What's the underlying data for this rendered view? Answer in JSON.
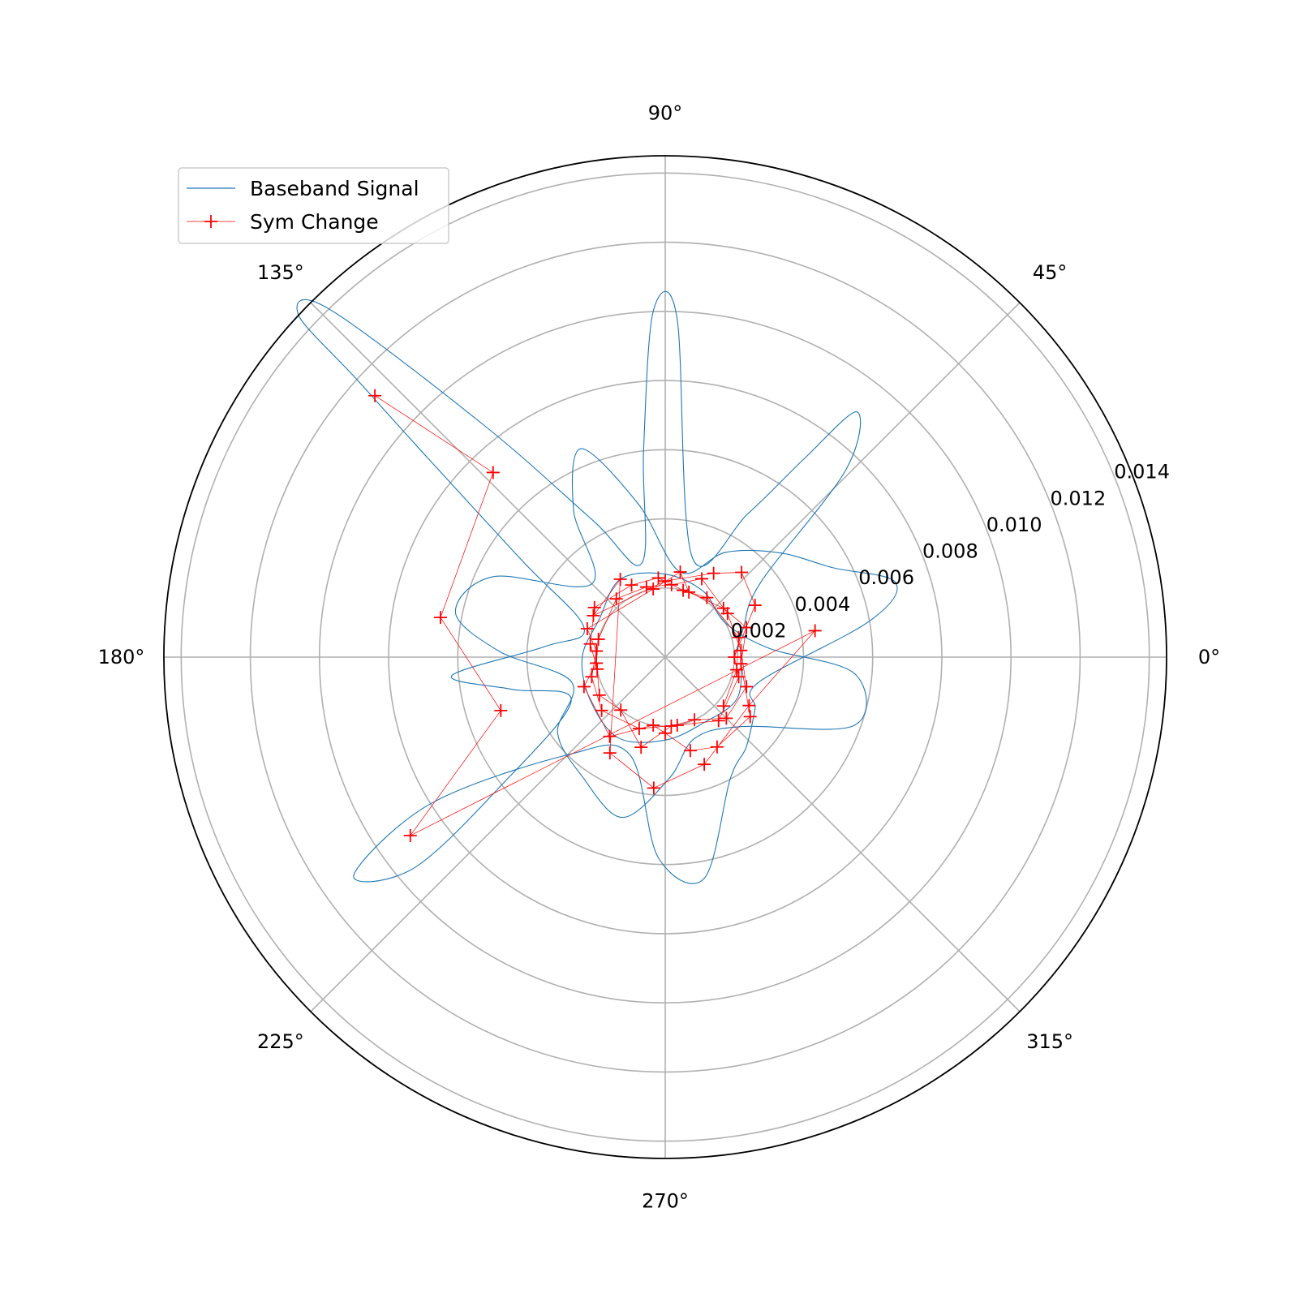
{
  "chart_data": {
    "type": "line",
    "projection": "polar",
    "title": "",
    "rlim": [
      0,
      0.0145
    ],
    "grid": true,
    "legend_placement": "upper-left",
    "angular_ticks": [
      {
        "deg": 0,
        "label": "0°"
      },
      {
        "deg": 45,
        "label": "45°"
      },
      {
        "deg": 90,
        "label": "90°"
      },
      {
        "deg": 135,
        "label": "135°"
      },
      {
        "deg": 180,
        "label": "180°"
      },
      {
        "deg": 225,
        "label": "225°"
      },
      {
        "deg": 270,
        "label": "270°"
      },
      {
        "deg": 315,
        "label": "315°"
      }
    ],
    "radial_ticks": [
      {
        "r": 0.002,
        "label": "0.002"
      },
      {
        "r": 0.004,
        "label": "0.004"
      },
      {
        "r": 0.006,
        "label": "0.006"
      },
      {
        "r": 0.008,
        "label": "0.008"
      },
      {
        "r": 0.01,
        "label": "0.010"
      },
      {
        "r": 0.012,
        "label": "0.012"
      },
      {
        "r": 0.014,
        "label": "0.014"
      }
    ],
    "colors": {
      "baseband": "#1f77b4",
      "sym_change": "#ff0000",
      "grid": "#b0b0b0",
      "spine": "#000000"
    },
    "series": [
      {
        "name": "Baseband Signal",
        "style": "line",
        "points_deg_r": [
          [
            0,
            0.002
          ],
          [
            20,
            0.0024
          ],
          [
            38,
            0.0035
          ],
          [
            46,
            0.0075
          ],
          [
            52,
            0.009
          ],
          [
            55,
            0.007
          ],
          [
            60,
            0.0048
          ],
          [
            75,
            0.003
          ],
          [
            88,
            0.0098
          ],
          [
            92,
            0.01
          ],
          [
            96,
            0.006
          ],
          [
            104,
            0.0028
          ],
          [
            118,
            0.0045
          ],
          [
            128,
            0.0085
          ],
          [
            134,
            0.014
          ],
          [
            137,
            0.0145
          ],
          [
            138,
            0.012
          ],
          [
            140,
            0.009
          ],
          [
            146,
            0.005
          ],
          [
            160,
            0.0025
          ],
          [
            175,
            0.0035
          ],
          [
            185,
            0.0062
          ],
          [
            192,
            0.0045
          ],
          [
            205,
            0.003
          ],
          [
            218,
            0.006
          ],
          [
            220,
            0.0095
          ],
          [
            215,
            0.011
          ],
          [
            212,
            0.008
          ],
          [
            225,
            0.004
          ],
          [
            250,
            0.003
          ],
          [
            268,
            0.0058
          ],
          [
            280,
            0.0065
          ],
          [
            298,
            0.004
          ],
          [
            312,
            0.0035
          ],
          [
            330,
            0.003
          ],
          [
            345,
            0.0028
          ],
          [
            10,
            0.006
          ],
          [
            18,
            0.007
          ],
          [
            28,
            0.0055
          ],
          [
            42,
            0.0045
          ],
          [
            60,
            0.0035
          ],
          [
            80,
            0.0025
          ],
          [
            100,
            0.0045
          ],
          [
            112,
            0.0065
          ],
          [
            122,
            0.005
          ],
          [
            135,
            0.003
          ],
          [
            155,
            0.0055
          ],
          [
            168,
            0.0062
          ],
          [
            178,
            0.0048
          ],
          [
            195,
            0.0028
          ],
          [
            215,
            0.0038
          ],
          [
            235,
            0.0042
          ],
          [
            255,
            0.0048
          ],
          [
            272,
            0.0035
          ],
          [
            290,
            0.0025
          ],
          [
            318,
            0.003
          ],
          [
            340,
            0.0058
          ],
          [
            355,
            0.0055
          ],
          [
            5,
            0.003
          ],
          [
            30,
            0.002
          ],
          [
            60,
            0.0022
          ],
          [
            90,
            0.0024
          ],
          [
            120,
            0.0026
          ],
          [
            150,
            0.0022
          ],
          [
            180,
            0.0024
          ],
          [
            210,
            0.0025
          ],
          [
            240,
            0.0027
          ],
          [
            270,
            0.0024
          ],
          [
            300,
            0.0022
          ],
          [
            330,
            0.0024
          ],
          [
            0,
            0.0022
          ]
        ]
      },
      {
        "name": "Sym Change",
        "style": "line+marker",
        "marker": "+",
        "points_deg_r": [
          [
            138,
            0.0113
          ],
          [
            133,
            0.0073
          ],
          [
            170,
            0.0066
          ],
          [
            198,
            0.005
          ],
          [
            215,
            0.009
          ],
          [
            10,
            0.0044
          ],
          [
            330,
            0.0028
          ],
          [
            290,
            0.0033
          ],
          [
            265,
            0.0038
          ],
          [
            240,
            0.0032
          ],
          [
            120,
            0.0026
          ],
          [
            150,
            0.0024
          ],
          [
            90,
            0.0022
          ],
          [
            60,
            0.0028
          ],
          [
            48,
            0.0033
          ],
          [
            30,
            0.003
          ],
          [
            0,
            0.002
          ],
          [
            345,
            0.0022
          ],
          [
            310,
            0.0024
          ],
          [
            280,
            0.002
          ],
          [
            250,
            0.0022
          ],
          [
            220,
            0.0024
          ],
          [
            195,
            0.0022
          ],
          [
            175,
            0.002
          ],
          [
            160,
            0.0024
          ],
          [
            100,
            0.002
          ],
          [
            80,
            0.0025
          ],
          [
            70,
            0.002
          ],
          [
            40,
            0.0022
          ],
          [
            20,
            0.0025
          ],
          [
            355,
            0.0022
          ],
          [
            325,
            0.003
          ],
          [
            300,
            0.003
          ],
          [
            285,
            0.0028
          ],
          [
            270,
            0.0022
          ],
          [
            260,
            0.002
          ],
          [
            235,
            0.0028
          ],
          [
            200,
            0.0025
          ],
          [
            185,
            0.002
          ],
          [
            165,
            0.002
          ],
          [
            130,
            0.0022
          ],
          [
            105,
            0.0021
          ],
          [
            85,
            0.0021
          ],
          [
            65,
            0.0025
          ],
          [
            35,
            0.0022
          ],
          [
            5,
            0.0022
          ],
          [
            340,
            0.0025
          ],
          [
            315,
            0.0025
          ],
          [
            295,
            0.002
          ],
          [
            275,
            0.002
          ],
          [
            255,
            0.0027
          ],
          [
            230,
            0.002
          ],
          [
            210,
            0.0022
          ],
          [
            190,
            0.002
          ],
          [
            170,
            0.0022
          ],
          [
            145,
            0.0025
          ],
          [
            115,
            0.0023
          ],
          [
            95,
            0.0023
          ],
          [
            75,
            0.002
          ],
          [
            55,
            0.0021
          ],
          [
            15,
            0.0022
          ],
          [
            350,
            0.0021
          ],
          [
            320,
            0.0022
          ]
        ]
      }
    ]
  },
  "legend": {
    "entries": [
      {
        "label": "Baseband Signal",
        "color": "#1f77b4",
        "marker": ""
      },
      {
        "label": "Sym Change",
        "color": "#ff0000",
        "marker": "+"
      }
    ]
  }
}
